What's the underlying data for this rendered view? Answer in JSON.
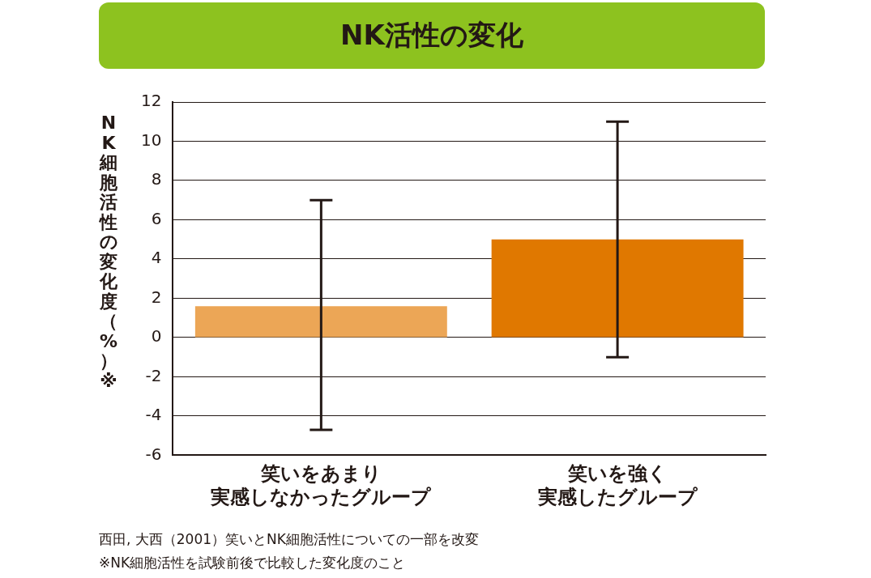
{
  "chart_data": {
    "type": "bar",
    "title": "NK活性の変化",
    "ylabel": "NK細胞活性の変化度（%）※",
    "categories": [
      "笑いをあまり実感しなかったグループ",
      "笑いを強く実感したグループ"
    ],
    "values": [
      1.6,
      5.0
    ],
    "colors": [
      "#eca656",
      "#e07800"
    ],
    "errors": [
      [
        -4.7,
        7.0
      ],
      [
        -1.0,
        11.0
      ]
    ],
    "ylim": [
      -6,
      12
    ],
    "yticks": [
      -6,
      -4,
      -2,
      0,
      2,
      4,
      6,
      8,
      10,
      12
    ],
    "grid": "y",
    "legend": false,
    "annotations": [
      "西田, 大西（2001）笑いとNK細胞活性についての一部を改変",
      "※NK細胞活性を試験前後で比較した変化度のこと"
    ]
  }
}
